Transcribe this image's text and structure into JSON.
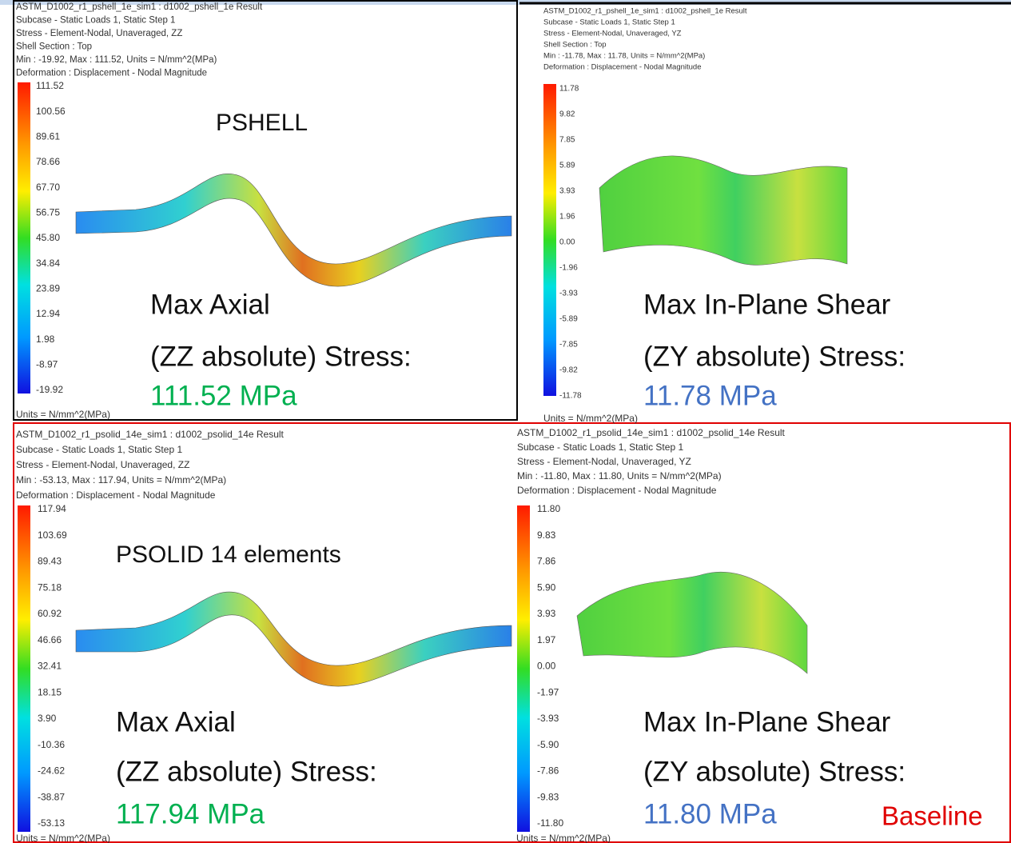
{
  "panels": [
    {
      "header": [
        "ASTM_D1002_r1_pshell_1e_sim1 : d1002_pshell_1e Result",
        "Subcase - Static Loads 1, Static Step 1",
        "Stress - Element-Nodal, Unaveraged, ZZ",
        "Shell Section : Top",
        "Min : -19.92, Max : 111.52, Units = N/mm^2(MPa)",
        "Deformation : Displacement - Nodal Magnitude"
      ],
      "legend": [
        "111.52",
        "100.56",
        "89.61",
        "78.66",
        "67.70",
        "56.75",
        "45.80",
        "34.84",
        "23.89",
        "12.94",
        "1.98",
        "-8.97",
        "-19.92"
      ],
      "units": "Units = N/mm^2(MPa)",
      "label": "PSHELL",
      "caption": [
        "Max Axial",
        "(ZZ absolute) Stress:"
      ],
      "value": "111.52 MPa"
    },
    {
      "header": [
        "ASTM_D1002_r1_pshell_1e_sim1 : d1002_pshell_1e Result",
        "Subcase - Static Loads 1, Static Step 1",
        "Stress - Element-Nodal, Unaveraged, YZ",
        "Shell Section : Top",
        "Min : -11.78, Max : 11.78, Units = N/mm^2(MPa)",
        "Deformation : Displacement - Nodal Magnitude"
      ],
      "legend": [
        "11.78",
        "9.82",
        "7.85",
        "5.89",
        "3.93",
        "1.96",
        "0.00",
        "-1.96",
        "-3.93",
        "-5.89",
        "-7.85",
        "-9.82",
        "-11.78"
      ],
      "units": "Units = N/mm^2(MPa)",
      "caption": [
        "Max In-Plane Shear",
        "(ZY absolute) Stress:"
      ],
      "value": "11.78 MPa"
    },
    {
      "header": [
        "ASTM_D1002_r1_psolid_14e_sim1 : d1002_psolid_14e Result",
        "Subcase - Static Loads 1, Static Step 1",
        "Stress - Element-Nodal, Unaveraged, ZZ",
        "Min : -53.13, Max : 117.94, Units = N/mm^2(MPa)",
        "Deformation : Displacement - Nodal Magnitude"
      ],
      "legend": [
        "117.94",
        "103.69",
        "89.43",
        "75.18",
        "60.92",
        "46.66",
        "32.41",
        "18.15",
        "3.90",
        "-10.36",
        "-24.62",
        "-38.87",
        "-53.13"
      ],
      "units": "Units = N/mm^2(MPa)",
      "label": "PSOLID 14 elements",
      "caption": [
        "Max Axial",
        "(ZZ absolute) Stress:"
      ],
      "value": "117.94 MPa"
    },
    {
      "header": [
        "ASTM_D1002_r1_psolid_14e_sim1 : d1002_psolid_14e Result",
        "Subcase - Static Loads 1, Static Step 1",
        "Stress - Element-Nodal, Unaveraged, YZ",
        "Min : -11.80, Max : 11.80, Units = N/mm^2(MPa)",
        "Deformation : Displacement - Nodal Magnitude"
      ],
      "legend": [
        "11.80",
        "9.83",
        "7.86",
        "5.90",
        "3.93",
        "1.97",
        "0.00",
        "-1.97",
        "-3.93",
        "-5.90",
        "-7.86",
        "-9.83",
        "-11.80"
      ],
      "units": "Units = N/mm^2(MPa)",
      "caption": [
        "Max In-Plane Shear",
        "(ZY absolute) Stress:"
      ],
      "value": "11.80 MPa"
    }
  ],
  "baseline": "Baseline"
}
